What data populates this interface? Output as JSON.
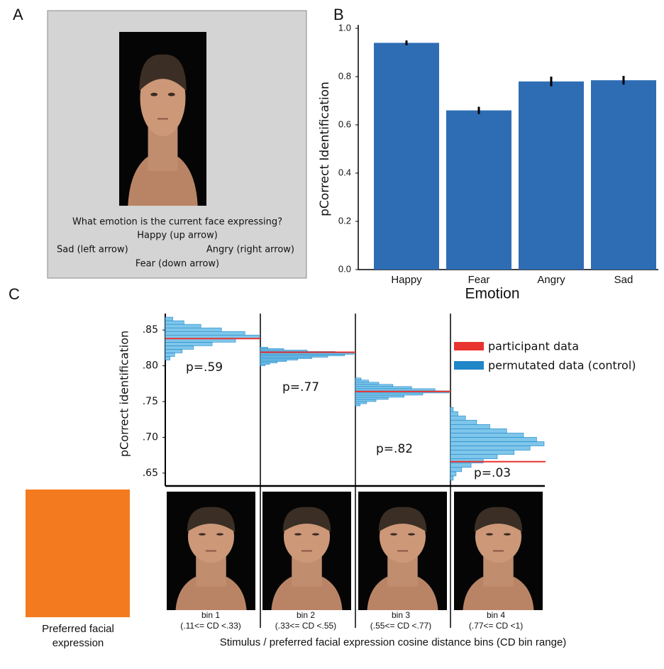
{
  "panel_labels": [
    "A",
    "B",
    "C"
  ],
  "task_screen": {
    "prompt": "What emotion is the current face expressing?",
    "up": "Happy (up arrow)",
    "left": "Sad (left arrow)",
    "right": "Angry (right arrow)",
    "down": "Fear (down arrow)"
  },
  "preferred_label": [
    "Preferred facial",
    "expression"
  ],
  "chart_data": [
    {
      "type": "bar",
      "xlabel": "Emotion",
      "ylabel": "pCorrect Identification",
      "categories": [
        "Happy",
        "Fear",
        "Angry",
        "Sad"
      ],
      "values": [
        0.94,
        0.66,
        0.78,
        0.785
      ],
      "errors": [
        0.01,
        0.015,
        0.02,
        0.018
      ],
      "color": "#2e6db4",
      "ylim": [
        0,
        1
      ],
      "yticks": [
        {
          "value": 0,
          "label": "0.0"
        },
        {
          "value": 0.2,
          "label": "0.2"
        },
        {
          "value": 0.4,
          "label": "0.4"
        },
        {
          "value": 0.6,
          "label": "0.6"
        },
        {
          "value": 0.8,
          "label": "0.8"
        },
        {
          "value": 1,
          "label": "1.0"
        }
      ]
    },
    {
      "type": "histogram",
      "ylabel": "pCorrect identification",
      "xlabel": "Stimulus / preferred facial expression cosine distance bins (CD bin range)",
      "categories": [
        "bin 1",
        "bin 2",
        "bin 3",
        "bin 4"
      ],
      "ranges": [
        "(.11<= CD <.33)",
        "(.33<= CD <.55)",
        "(.55<= CD <.77)",
        "(.77<= CD <1)"
      ],
      "annotations": [
        "p=.59",
        "p=.77",
        "p=.82",
        "p=.03"
      ],
      "ylim": [
        0.632,
        0.873
      ],
      "yticks": [
        {
          "value": 0.65,
          "label": ".65"
        },
        {
          "value": 0.7,
          "label": ".70"
        },
        {
          "value": 0.75,
          "label": ".75"
        },
        {
          "value": 0.8,
          "label": ".80"
        },
        {
          "value": 0.85,
          "label": ".85"
        }
      ],
      "series": [
        {
          "name": "participant data",
          "color": "#e8332f",
          "values": [
            0.838,
            0.819,
            0.764,
            0.666
          ]
        },
        {
          "name": "permutated data (control)",
          "color": "#1f86c8",
          "histograms": [
            {
              "bins": [
                0.808,
                0.813,
                0.818,
                0.823,
                0.828,
                0.833,
                0.838,
                0.843,
                0.848,
                0.853,
                0.858,
                0.863,
                0.868
              ],
              "counts": [
                5,
                10,
                18,
                30,
                50,
                75,
                100,
                85,
                60,
                38,
                20,
                8
              ]
            },
            {
              "bins": [
                0.8,
                0.802,
                0.804,
                0.806,
                0.808,
                0.81,
                0.812,
                0.814,
                0.816,
                0.818,
                0.82,
                0.822,
                0.824,
                0.826
              ],
              "counts": [
                5,
                10,
                18,
                28,
                40,
                55,
                72,
                90,
                100,
                80,
                50,
                25,
                8
              ]
            },
            {
              "bins": [
                0.744,
                0.747,
                0.75,
                0.753,
                0.756,
                0.759,
                0.762,
                0.765,
                0.768,
                0.771,
                0.774,
                0.777,
                0.78,
                0.783
              ],
              "counts": [
                5,
                12,
                22,
                35,
                52,
                72,
                100,
                85,
                60,
                40,
                25,
                14,
                6
              ]
            },
            {
              "bins": [
                0.64,
                0.646,
                0.652,
                0.658,
                0.664,
                0.67,
                0.676,
                0.682,
                0.688,
                0.694,
                0.7,
                0.706,
                0.712,
                0.718,
                0.724,
                0.73,
                0.736,
                0.742
              ],
              "counts": [
                3,
                6,
                12,
                22,
                35,
                50,
                68,
                85,
                100,
                92,
                78,
                60,
                42,
                28,
                16,
                8,
                3
              ]
            }
          ]
        }
      ]
    }
  ]
}
